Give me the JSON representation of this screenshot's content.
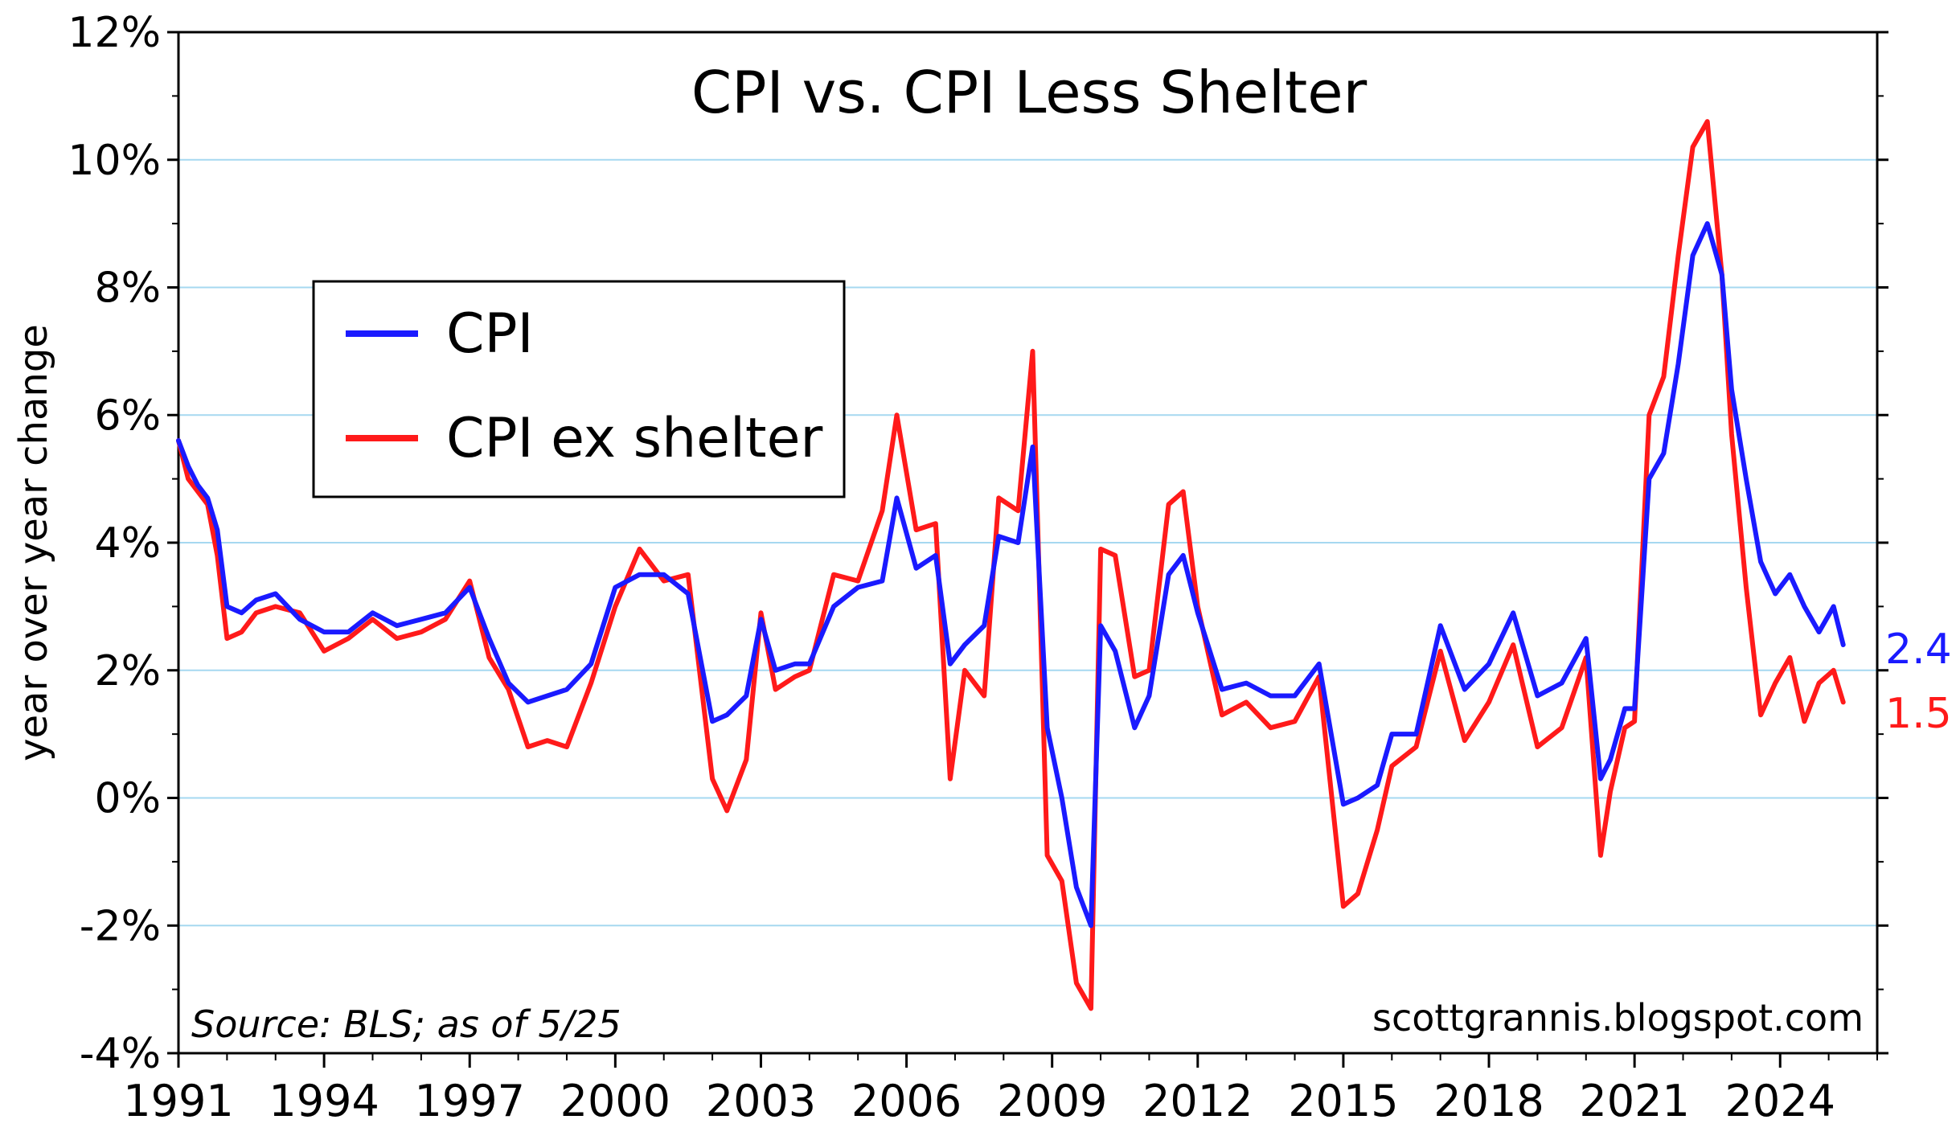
{
  "chart_data": {
    "type": "line",
    "title": "CPI vs. CPI Less Shelter",
    "ylabel": "year over year change",
    "xlabel": "",
    "xlim": [
      1991,
      2026
    ],
    "ylim": [
      -4,
      12
    ],
    "x_ticks": [
      "1991",
      "1994",
      "1997",
      "2000",
      "2003",
      "2006",
      "2009",
      "2012",
      "2015",
      "2018",
      "2021",
      "2024"
    ],
    "y_ticks": [
      "-4%",
      "-2%",
      "0%",
      "2%",
      "4%",
      "6%",
      "8%",
      "10%",
      "12%"
    ],
    "grid": "horizontal",
    "legend_position": "upper-left",
    "source_note": "Source: BLS; as of 5/25",
    "watermark": "scottgrannis.blogspot.com",
    "end_labels": {
      "cpi": "2.4",
      "cpi_ex_shelter": "1.5"
    },
    "colors": {
      "cpi": "#1a1aff",
      "cpi_ex_shelter": "#ff1a1a",
      "grid": "#a6d8f0"
    },
    "series": [
      {
        "name": "CPI",
        "color": "#1a1aff",
        "x": [
          1991.0,
          1991.2,
          1991.4,
          1991.6,
          1991.8,
          1992.0,
          1992.3,
          1992.6,
          1993.0,
          1993.5,
          1994.0,
          1994.5,
          1995.0,
          1995.5,
          1996.0,
          1996.5,
          1997.0,
          1997.4,
          1997.8,
          1998.2,
          1998.6,
          1999.0,
          1999.5,
          2000.0,
          2000.5,
          2001.0,
          2001.5,
          2002.0,
          2002.3,
          2002.7,
          2003.0,
          2003.3,
          2003.7,
          2004.0,
          2004.5,
          2005.0,
          2005.5,
          2005.8,
          2006.2,
          2006.6,
          2006.9,
          2007.2,
          2007.6,
          2007.9,
          2008.3,
          2008.6,
          2008.9,
          2009.2,
          2009.5,
          2009.8,
          2010.0,
          2010.3,
          2010.7,
          2011.0,
          2011.4,
          2011.7,
          2012.0,
          2012.5,
          2013.0,
          2013.5,
          2014.0,
          2014.5,
          2015.0,
          2015.3,
          2015.7,
          2016.0,
          2016.5,
          2017.0,
          2017.5,
          2018.0,
          2018.5,
          2019.0,
          2019.5,
          2020.0,
          2020.3,
          2020.5,
          2020.8,
          2021.0,
          2021.3,
          2021.6,
          2021.9,
          2022.2,
          2022.5,
          2022.8,
          2023.0,
          2023.3,
          2023.6,
          2023.9,
          2024.2,
          2024.5,
          2024.8,
          2025.1,
          2025.3
        ],
        "values": [
          5.6,
          5.2,
          4.9,
          4.7,
          4.2,
          3.0,
          2.9,
          3.1,
          3.2,
          2.8,
          2.6,
          2.6,
          2.9,
          2.7,
          2.8,
          2.9,
          3.3,
          2.5,
          1.8,
          1.5,
          1.6,
          1.7,
          2.1,
          3.3,
          3.5,
          3.5,
          3.2,
          1.2,
          1.3,
          1.6,
          2.8,
          2.0,
          2.1,
          2.1,
          3.0,
          3.3,
          3.4,
          4.7,
          3.6,
          3.8,
          2.1,
          2.4,
          2.7,
          4.1,
          4.0,
          5.5,
          1.1,
          0.0,
          -1.4,
          -2.0,
          2.7,
          2.3,
          1.1,
          1.6,
          3.5,
          3.8,
          2.9,
          1.7,
          1.8,
          1.6,
          1.6,
          2.1,
          -0.1,
          0.0,
          0.2,
          1.0,
          1.0,
          2.7,
          1.7,
          2.1,
          2.9,
          1.6,
          1.8,
          2.5,
          0.3,
          0.6,
          1.4,
          1.4,
          5.0,
          5.4,
          6.8,
          8.5,
          9.0,
          8.2,
          6.4,
          5.0,
          3.7,
          3.2,
          3.5,
          3.0,
          2.6,
          3.0,
          2.4
        ]
      },
      {
        "name": "CPI ex shelter",
        "color": "#ff1a1a",
        "x": [
          1991.0,
          1991.2,
          1991.4,
          1991.6,
          1991.8,
          1992.0,
          1992.3,
          1992.6,
          1993.0,
          1993.5,
          1994.0,
          1994.5,
          1995.0,
          1995.5,
          1996.0,
          1996.5,
          1997.0,
          1997.4,
          1997.8,
          1998.2,
          1998.6,
          1999.0,
          1999.5,
          2000.0,
          2000.5,
          2001.0,
          2001.5,
          2002.0,
          2002.3,
          2002.7,
          2003.0,
          2003.3,
          2003.7,
          2004.0,
          2004.5,
          2005.0,
          2005.5,
          2005.8,
          2006.2,
          2006.6,
          2006.9,
          2007.2,
          2007.6,
          2007.9,
          2008.3,
          2008.6,
          2008.9,
          2009.2,
          2009.5,
          2009.8,
          2010.0,
          2010.3,
          2010.7,
          2011.0,
          2011.4,
          2011.7,
          2012.0,
          2012.5,
          2013.0,
          2013.5,
          2014.0,
          2014.5,
          2015.0,
          2015.3,
          2015.7,
          2016.0,
          2016.5,
          2017.0,
          2017.5,
          2018.0,
          2018.5,
          2019.0,
          2019.5,
          2020.0,
          2020.3,
          2020.5,
          2020.8,
          2021.0,
          2021.3,
          2021.6,
          2021.9,
          2022.2,
          2022.5,
          2022.8,
          2023.0,
          2023.3,
          2023.6,
          2023.9,
          2024.2,
          2024.5,
          2024.8,
          2025.1,
          2025.3
        ],
        "values": [
          5.6,
          5.0,
          4.8,
          4.6,
          3.8,
          2.5,
          2.6,
          2.9,
          3.0,
          2.9,
          2.3,
          2.5,
          2.8,
          2.5,
          2.6,
          2.8,
          3.4,
          2.2,
          1.7,
          0.8,
          0.9,
          0.8,
          1.8,
          3.0,
          3.9,
          3.4,
          3.5,
          0.3,
          -0.2,
          0.6,
          2.9,
          1.7,
          1.9,
          2.0,
          3.5,
          3.4,
          4.5,
          6.0,
          4.2,
          4.3,
          0.3,
          2.0,
          1.6,
          4.7,
          4.5,
          7.0,
          -0.9,
          -1.3,
          -2.9,
          -3.3,
          3.9,
          3.8,
          1.9,
          2.0,
          4.6,
          4.8,
          3.0,
          1.3,
          1.5,
          1.1,
          1.2,
          1.9,
          -1.7,
          -1.5,
          -0.5,
          0.5,
          0.8,
          2.3,
          0.9,
          1.5,
          2.4,
          0.8,
          1.1,
          2.2,
          -0.9,
          0.1,
          1.1,
          1.2,
          6.0,
          6.6,
          8.5,
          10.2,
          10.6,
          8.2,
          5.7,
          3.3,
          1.3,
          1.8,
          2.2,
          1.2,
          1.8,
          2.0,
          1.5
        ]
      }
    ]
  }
}
